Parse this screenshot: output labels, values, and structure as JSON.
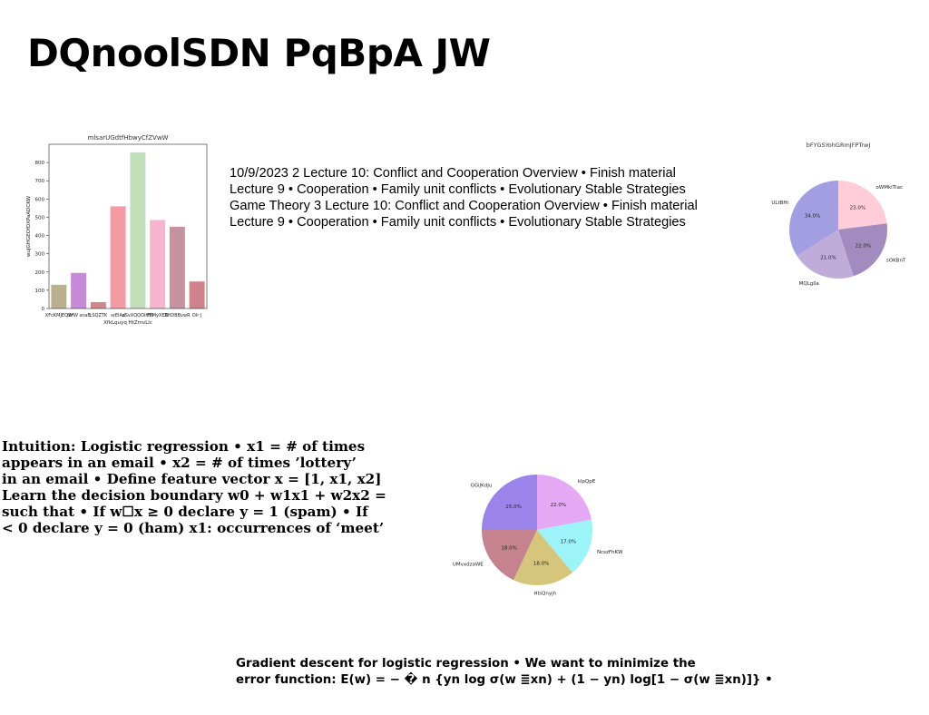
{
  "page": {
    "title": "DQnoolSDN PqBpA JW"
  },
  "paragraphs": {
    "top_lines": [
      "10/9/2023 2 Lecture 10: Conflict and Cooperation Overview • Finish material",
      "Lecture 9 • Cooperation • Family unit conflicts • Evolutionary Stable Strategies",
      "Game Theory 3 Lecture 10: Conflict and Cooperation Overview • Finish material",
      "Lecture 9 • Cooperation • Family unit conflicts • Evolutionary Stable Strategies"
    ],
    "middle_lines": [
      "Intuition: Logistic regression • x1 = # of times",
      "appears in an email • x2 = # of times ’lottery’",
      "in an email • Define feature vector x = [1, x1, x2]",
      "Learn the decision boundary w0 + w1x1 + w2x2 =",
      "such that • If w☐x ≥ 0 declare y = 1 (spam) • If",
      "< 0 declare y = 0 (ham) x1: occurrences of ‘meet’"
    ],
    "bottom_lines": [
      "Gradient descent for logistic regression • We want to minimize the",
      "error function: E(w) = − � n {yn log σ(w ≣xn) + (1 − yn) log[1 − σ(w ≣xn)]} •"
    ]
  },
  "chart_data": [
    {
      "type": "bar",
      "title": "mlsarUGdtfHbwyCfZVwW",
      "xlabel": "XfkLquyq HtZmvLlc",
      "ylabel": "wuJGHGEOfDXPaADCKW",
      "categories": [
        "XFcKMJEQW",
        "UrfW snaB",
        "LSQZTK",
        "srEIAd",
        "aSvXQQOiHW",
        "FFMyXEN",
        "ZHDBBvwR",
        "Olr J"
      ],
      "values": [
        130,
        195,
        35,
        560,
        855,
        485,
        448,
        148
      ],
      "colors": [
        "#b8b08e",
        "#c58ad8",
        "#d1868e",
        "#f49aa5",
        "#c2dfbb",
        "#f6b5cd",
        "#c4939f",
        "#cf8289"
      ],
      "ylim": [
        0,
        900
      ],
      "yticks": [
        0,
        100,
        200,
        300,
        400,
        500,
        600,
        700,
        800
      ],
      "grid": false
    },
    {
      "type": "pie",
      "title": "bFYGSYohGRmJFPTrwJ",
      "slices": [
        {
          "label": "oWMkiTlac",
          "value": 23.0,
          "pct": "23.0%",
          "color": "#ffccd9"
        },
        {
          "label": "sOKBnT",
          "value": 22.0,
          "pct": "22.0%",
          "color": "#a28bbf"
        },
        {
          "label": "MQLgIla",
          "value": 21.0,
          "pct": "21.0%",
          "color": "#bfacd8"
        },
        {
          "label": "ULtBHi",
          "value": 34.0,
          "pct": "34.0%",
          "color": "#a39ee1"
        }
      ]
    },
    {
      "type": "pie",
      "title": "",
      "slices": [
        {
          "label": "klpQpE",
          "value": 22.0,
          "pct": "22.0%",
          "color": "#e5a8f5"
        },
        {
          "label": "NcszFhKW",
          "value": 17.0,
          "pct": "17.0%",
          "color": "#9cf3f8"
        },
        {
          "label": "HIsQnyjh",
          "value": 18.0,
          "pct": "18.0%",
          "color": "#d5c67b"
        },
        {
          "label": "UMvxdzaWE",
          "value": 18.0,
          "pct": "18.0%",
          "color": "#c4838e"
        },
        {
          "label": "GGiJKdJu",
          "value": 25.0,
          "pct": "25.0%",
          "color": "#9b84e9"
        }
      ]
    }
  ]
}
